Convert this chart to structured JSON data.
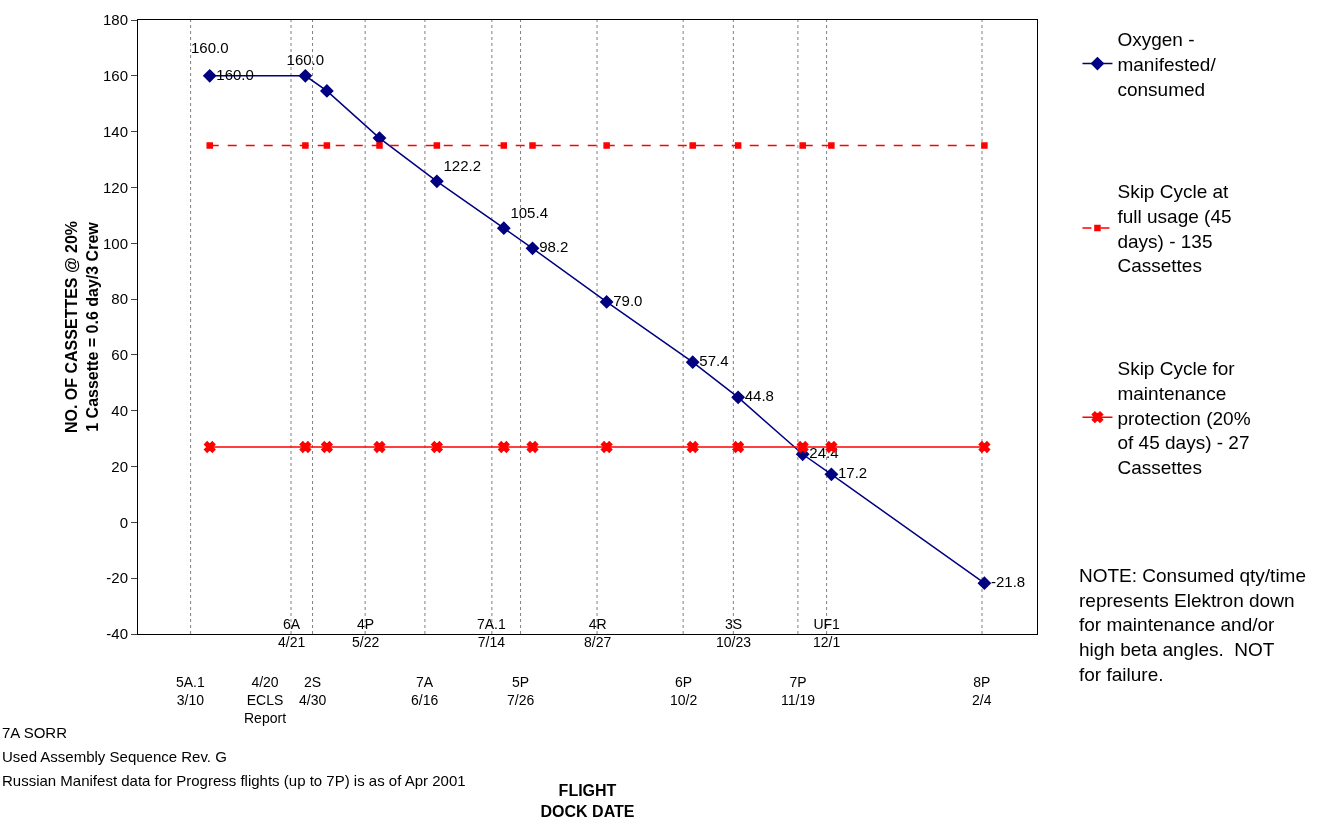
{
  "chart_data": {
    "type": "line",
    "x": [
      "2001-03-18",
      "2001-04-27",
      "2001-05-06",
      "2001-05-28",
      "2001-06-21",
      "2001-07-19",
      "2001-07-31",
      "2001-08-31",
      "2001-10-06",
      "2001-10-25",
      "2001-11-21",
      "2001-12-03",
      "2002-02-05"
    ],
    "series": [
      {
        "name": "Oxygen - manifested/ consumed",
        "color": "#000080",
        "marker": "diamond",
        "line_style": "solid",
        "values": [
          160.0,
          160.0,
          154.6,
          137.7,
          122.2,
          105.4,
          98.2,
          79.0,
          57.4,
          44.8,
          24.4,
          17.2,
          -21.8
        ],
        "value_labels": [
          "160.0",
          "160.0",
          null,
          null,
          "122.2",
          "105.4",
          "98.2",
          "79.0",
          "57.4",
          "44.8",
          "24.4",
          "17.2",
          "-21.8"
        ]
      },
      {
        "name": "Skip Cycle at full usage (45 days) - 135 Cassettes",
        "color": "#ff0000",
        "marker": "square",
        "line_style": "dashed",
        "values": [
          135,
          135,
          135,
          135,
          135,
          135,
          135,
          135,
          135,
          135,
          135,
          135,
          135
        ]
      },
      {
        "name": "Skip Cycle for maintenance protection (20% of 45 days) - 27 Cassettes",
        "color": "#ff0000",
        "marker": "cross",
        "line_style": "solid",
        "x": [
          "2001-03-18",
          "2001-04-27",
          "2001-05-06",
          "2001-05-28",
          "2001-06-21",
          "2001-07-19",
          "2001-07-31",
          "2001-08-31",
          "2001-10-06",
          "2001-10-25",
          "2001-11-21",
          "2001-12-03",
          "2002-02-05"
        ],
        "values": [
          27,
          27,
          27,
          27,
          27,
          27,
          27,
          27,
          27,
          27,
          27,
          27,
          27
        ]
      }
    ],
    "xlabel": "FLIGHT DOCK DATE",
    "ylabel": "NO. OF CASSETTES @ 20%\n1 Cassette = 0.6 day/3 Crew",
    "xlim": [
      "2001-02-16",
      "2002-02-27"
    ],
    "ylim": [
      -40,
      180
    ],
    "yticks": [
      -40,
      -20,
      0,
      20,
      40,
      60,
      80,
      100,
      120,
      140,
      160,
      180
    ],
    "xticks": [
      {
        "value": "2001-03-10",
        "label": "5A.1 3/10"
      },
      {
        "value": "2001-04-10",
        "label": "4/20 ECLS Report"
      },
      {
        "value": "2001-04-30",
        "label": "2S 4/30"
      },
      {
        "value": "2001-06-16",
        "label": "7A 6/16"
      },
      {
        "value": "2001-07-26",
        "label": "5P 7/26"
      },
      {
        "value": "2001-10-02",
        "label": "6P 10/2"
      },
      {
        "value": "2001-11-19",
        "label": "7P 11/19"
      },
      {
        "value": "2002-02-04",
        "label": "8P 2/4"
      }
    ],
    "grid": false,
    "legend": "right",
    "ref_lines": [
      {
        "axis": "x",
        "value": "2001-03-10",
        "color": "#808080",
        "line_style": "dotted"
      },
      {
        "axis": "x",
        "value": "2001-04-21",
        "label": "6A 4/21",
        "color": "#808080",
        "line_style": "dotted"
      },
      {
        "axis": "x",
        "value": "2001-04-30",
        "color": "#808080",
        "line_style": "dotted"
      },
      {
        "axis": "x",
        "value": "2001-05-22",
        "label": "4P 5/22",
        "color": "#808080",
        "line_style": "dotted"
      },
      {
        "axis": "x",
        "value": "2001-06-16",
        "color": "#808080",
        "line_style": "dotted"
      },
      {
        "axis": "x",
        "value": "2001-07-14",
        "label": "7A.1 7/14",
        "color": "#808080",
        "line_style": "dotted"
      },
      {
        "axis": "x",
        "value": "2001-07-26",
        "color": "#808080",
        "line_style": "dotted"
      },
      {
        "axis": "x",
        "value": "2001-08-27",
        "label": "4R 8/27",
        "color": "#808080",
        "line_style": "dotted"
      },
      {
        "axis": "x",
        "value": "2001-10-02",
        "color": "#808080",
        "line_style": "dotted"
      },
      {
        "axis": "x",
        "value": "2001-10-23",
        "label": "3S 10/23",
        "color": "#808080",
        "line_style": "dotted"
      },
      {
        "axis": "x",
        "value": "2001-11-19",
        "color": "#808080",
        "line_style": "dotted"
      },
      {
        "axis": "x",
        "value": "2001-12-01",
        "label": "UF1 12/1",
        "color": "#808080",
        "line_style": "dotted"
      },
      {
        "axis": "x",
        "value": "2002-02-04",
        "color": "#808080",
        "line_style": "dotted"
      }
    ],
    "annotations": [
      {
        "text": "160.0",
        "x": "2001-03-18",
        "y": 160
      },
      "NOTE: Consumed qty/time represents Elektron down for maintenance and/or high beta angles.  NOT for failure.",
      "7A SORR",
      "Used Assembly Sequence Rev. G",
      "Russian Manifest data for Progress flights (up to 7P) is as of Apr 2001"
    ]
  }
}
